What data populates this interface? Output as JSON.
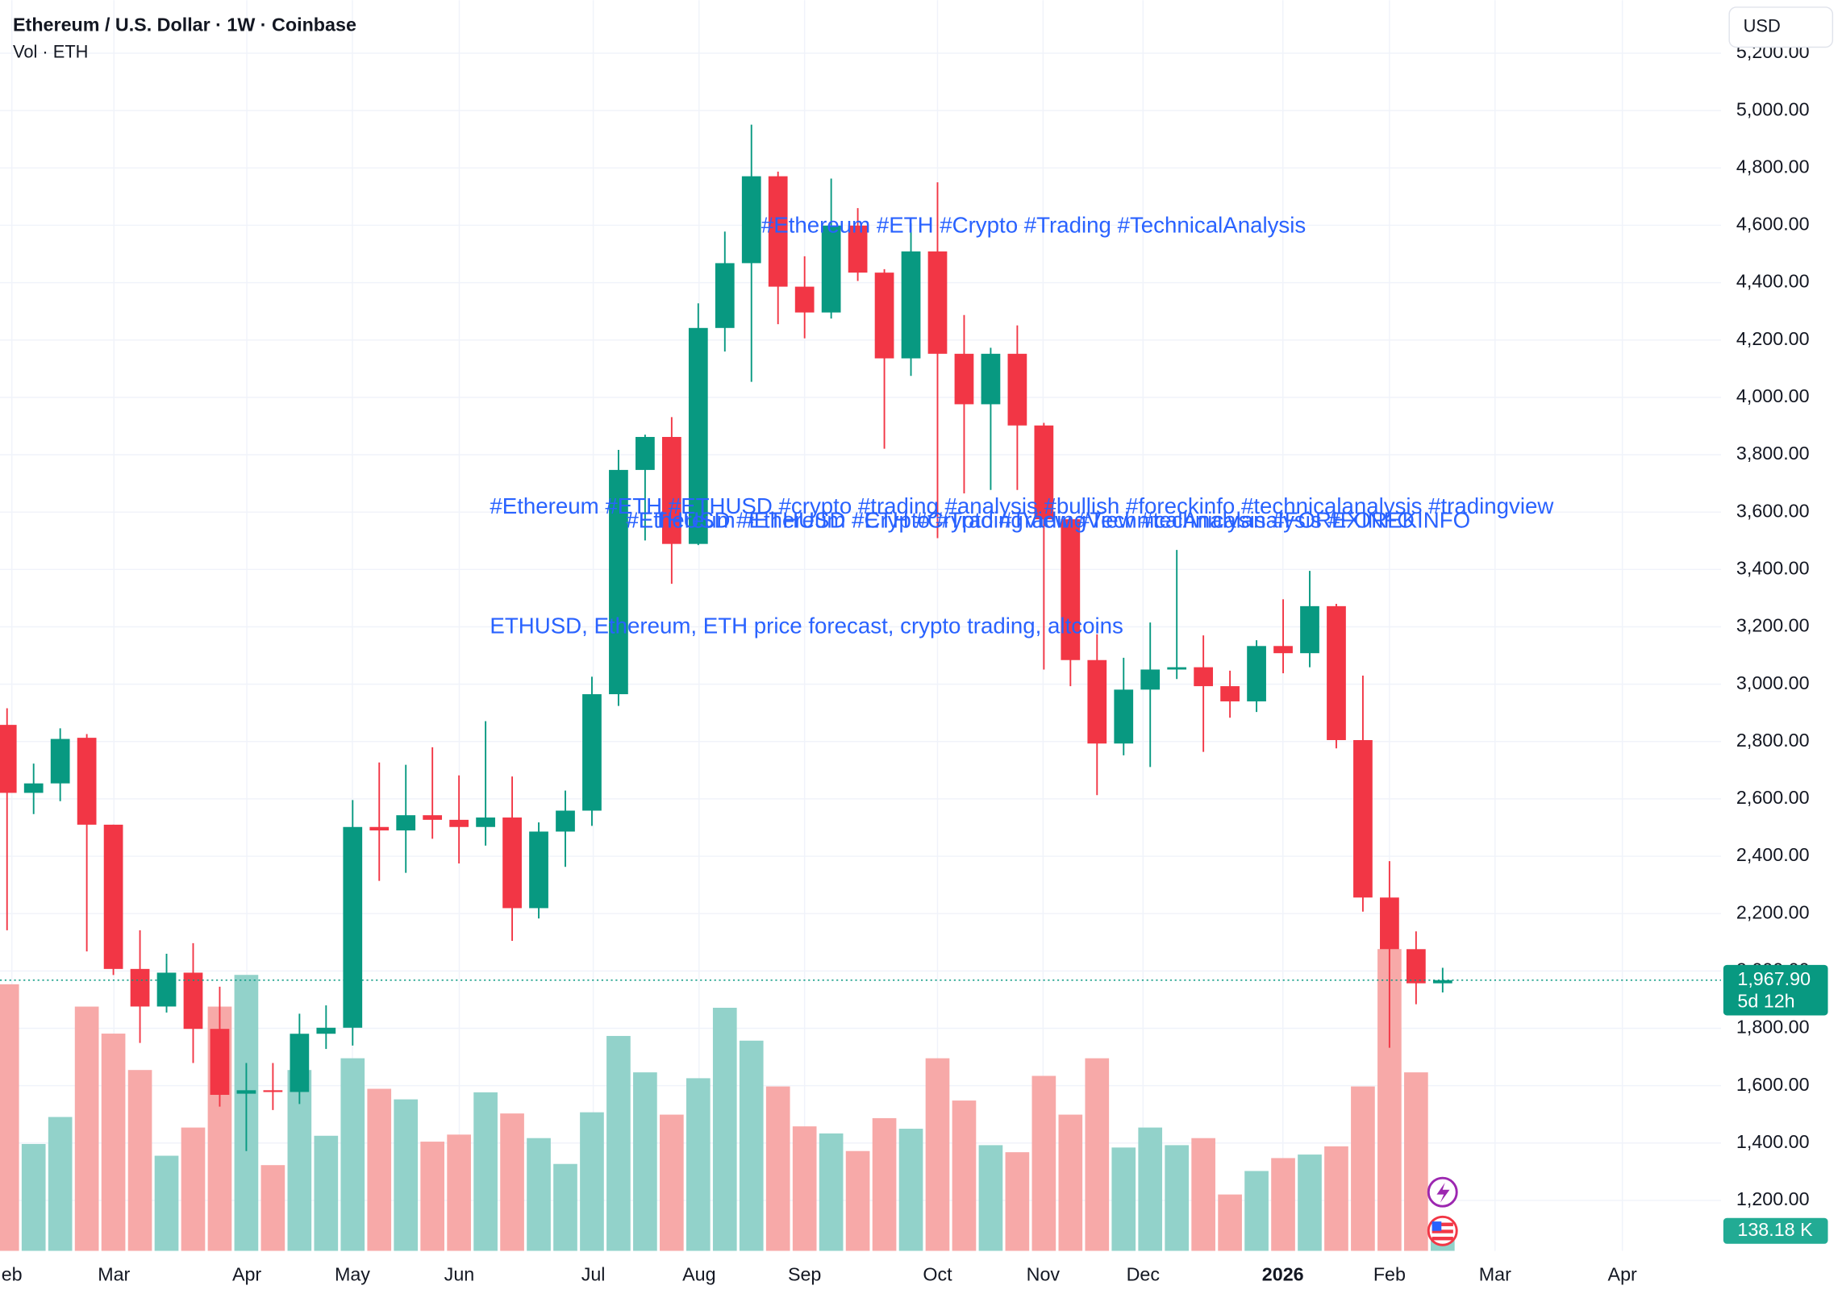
{
  "chart_data": {
    "type": "candlestick",
    "title": "Ethereum / U.S. Dollar · 1W · Coinbase",
    "subtitle": "Vol · ETH",
    "currency": "USD",
    "categories": [
      null,
      null,
      null,
      null,
      null,
      null,
      null,
      null,
      null,
      null,
      null,
      null,
      null,
      null,
      null,
      null,
      null,
      null,
      null,
      null,
      null,
      null,
      null,
      null,
      null,
      null,
      null,
      null,
      null,
      null,
      null,
      null,
      null,
      null,
      null,
      null,
      null,
      null,
      null,
      null,
      null,
      null,
      null,
      null,
      null,
      null,
      null,
      null,
      null,
      null,
      null,
      null,
      null,
      null,
      null
    ],
    "open": [
      2858,
      2621,
      2654,
      2813,
      2510,
      2007,
      1876,
      1994,
      1798,
      1572,
      1584,
      1578,
      1781,
      1802,
      2502,
      2490,
      2543,
      2527,
      2502,
      2535,
      2219,
      2486,
      2559,
      2965,
      3747,
      3862,
      3489,
      4242,
      4468,
      4771,
      4386,
      4296,
      4599,
      4435,
      4136,
      4509,
      4152,
      3976,
      4152,
      3902,
      3575,
      3084,
      2793,
      2981,
      3051,
      3059,
      2993,
      2940,
      3133,
      3108,
      3272,
      2805,
      2256,
      2076,
      1957
    ],
    "high": [
      2916,
      2723,
      2846,
      2826,
      2510,
      2142,
      2060,
      2097,
      1945,
      1679,
      1679,
      1851,
      1880,
      2596,
      2727,
      2719,
      2780,
      2682,
      2871,
      2678,
      2518,
      2629,
      3026,
      3817,
      3870,
      3931,
      4328,
      4578,
      4951,
      4787,
      4492,
      4763,
      4660,
      4447,
      4607,
      4750,
      4287,
      4173,
      4251,
      3911,
      3583,
      3174,
      3092,
      3215,
      3468,
      3170,
      3047,
      3153,
      3296,
      3395,
      3280,
      3030,
      2383,
      2138,
      2011
    ],
    "low": [
      2142,
      2547,
      2592,
      2068,
      1986,
      1749,
      1855,
      1679,
      1527,
      1372,
      1515,
      1536,
      1728,
      1740,
      2314,
      2342,
      2461,
      2375,
      2437,
      2105,
      2183,
      2363,
      2506,
      2924,
      3501,
      3350,
      3485,
      4160,
      4054,
      4255,
      4206,
      4275,
      4406,
      3821,
      4075,
      3509,
      3665,
      3677,
      3677,
      3051,
      2993,
      2613,
      2752,
      2711,
      3018,
      2764,
      2883,
      2903,
      3038,
      3059,
      2776,
      2207,
      1732,
      1884,
      1925
    ],
    "close": [
      2621,
      2654,
      2809,
      2510,
      2007,
      1876,
      1994,
      1798,
      1568,
      1584,
      1578,
      1781,
      1802,
      2502,
      2490,
      2543,
      2527,
      2502,
      2535,
      2219,
      2486,
      2559,
      2965,
      3747,
      3862,
      3489,
      4242,
      4468,
      4771,
      4386,
      4296,
      4599,
      4435,
      4136,
      4509,
      4152,
      3976,
      4152,
      3902,
      3575,
      3084,
      2793,
      2981,
      3051,
      3059,
      2993,
      2940,
      3133,
      3108,
      3272,
      2805,
      2256,
      2076,
      1957,
      1967.9
    ],
    "close_labels": [
      null,
      null,
      null,
      null,
      null,
      null,
      null,
      null,
      null,
      null,
      null,
      null,
      null,
      null,
      null,
      null,
      null,
      null,
      null,
      null,
      null,
      null,
      null,
      null,
      null,
      null,
      null,
      null,
      null,
      null,
      null,
      null,
      null,
      null,
      null,
      null,
      null,
      null,
      null,
      null,
      null,
      null,
      null,
      null,
      null,
      null,
      null,
      null,
      null,
      null,
      null,
      null,
      null,
      null,
      "1,967.90"
    ],
    "countdown": "5d 12h",
    "volume": {
      "values": [
        2270,
        910,
        1140,
        2080,
        1850,
        1540,
        810,
        1050,
        2080,
        2350,
        730,
        1540,
        980,
        1640,
        1380,
        1290,
        930,
        990,
        1350,
        1170,
        960,
        740,
        1180,
        1830,
        1520,
        1160,
        1470,
        2070,
        1790,
        1400,
        1060,
        1000,
        850,
        1130,
        1040,
        1640,
        1280,
        900,
        840,
        1490,
        1160,
        1640,
        880,
        1050,
        900,
        960,
        480,
        680,
        790,
        820,
        890,
        1400,
        2570,
        1520,
        138.18
      ],
      "value_labels": [
        null,
        null,
        null,
        null,
        null,
        null,
        null,
        null,
        null,
        null,
        null,
        null,
        null,
        null,
        null,
        null,
        null,
        null,
        null,
        null,
        null,
        null,
        null,
        null,
        null,
        null,
        null,
        null,
        null,
        null,
        null,
        null,
        null,
        null,
        null,
        null,
        null,
        null,
        null,
        null,
        null,
        null,
        null,
        null,
        null,
        null,
        null,
        null,
        null,
        null,
        null,
        null,
        null,
        null,
        "138.18 K"
      ],
      "ylim": [
        0,
        4000
      ],
      "up_color": "#92d2ca",
      "down_color": "#f7a9a8"
    },
    "up_color": "#089981",
    "down_color": "#f23645",
    "xlim": [
      -0.265,
      64.47
    ],
    "xticks": [
      {
        "value": 0.18,
        "label": "eb"
      },
      {
        "value": 4.02,
        "label": "Mar"
      },
      {
        "value": 9.02,
        "label": "Apr"
      },
      {
        "value": 12.99,
        "label": "May"
      },
      {
        "value": 17.01,
        "label": "Jun"
      },
      {
        "value": 22.05,
        "label": "Jul"
      },
      {
        "value": 26.03,
        "label": "Aug"
      },
      {
        "value": 30.0,
        "label": "Sep"
      },
      {
        "value": 35.0,
        "label": "Oct"
      },
      {
        "value": 38.97,
        "label": "Nov"
      },
      {
        "value": 42.73,
        "label": "Dec"
      },
      {
        "value": 47.99,
        "label": "2026"
      },
      {
        "value": 52.0,
        "label": "Feb"
      },
      {
        "value": 55.97,
        "label": "Mar"
      },
      {
        "value": 60.76,
        "label": "Apr"
      }
    ],
    "ylim": [
      1024,
      5385
    ],
    "yticks": [
      {
        "value": 1200,
        "label": "1,200.00"
      },
      {
        "value": 1400,
        "label": "1,400.00"
      },
      {
        "value": 1600,
        "label": "1,600.00"
      },
      {
        "value": 1800,
        "label": "1,800.00"
      },
      {
        "value": 2000,
        "label": "2,000.00"
      },
      {
        "value": 2200,
        "label": "2,200.00"
      },
      {
        "value": 2400,
        "label": "2,400.00"
      },
      {
        "value": 2600,
        "label": "2,600.00"
      },
      {
        "value": 2800,
        "label": "2,800.00"
      },
      {
        "value": 3000,
        "label": "3,000.00"
      },
      {
        "value": 3200,
        "label": "3,200.00"
      },
      {
        "value": 3400,
        "label": "3,400.00"
      },
      {
        "value": 3600,
        "label": "3,600.00"
      },
      {
        "value": 3800,
        "label": "3,800.00"
      },
      {
        "value": 4000,
        "label": "4,000.00"
      },
      {
        "value": 4200,
        "label": "4,200.00"
      },
      {
        "value": 4400,
        "label": "4,400.00"
      },
      {
        "value": 4600,
        "label": "4,600.00"
      },
      {
        "value": 4800,
        "label": "4,800.00"
      },
      {
        "value": 5000,
        "label": "5,000.00"
      },
      {
        "value": 5200,
        "label": "5,200.00"
      }
    ],
    "grid": true,
    "annotation_color": "#2962ff",
    "annotations": [
      "#Ethereum #ETH #Crypto #Trading #TechnicalAnalysis",
      "#Ethereum #ETH #ETHUSD #crypto #trading #analysis #bullish #foreckinfo #technicalanalysis #tradingview",
      "#ETHUSD #Ethereum #ETH #Crypto #TradingView #technicalanalysis #FOREKINFO",
      "#Ethereum #ETHUSD #Crypto #TradingView #TechnicalAnalysis #FOREXINFO",
      "ETHUSD, Ethereum, ETH price forecast, crypto trading, altcoins"
    ]
  }
}
